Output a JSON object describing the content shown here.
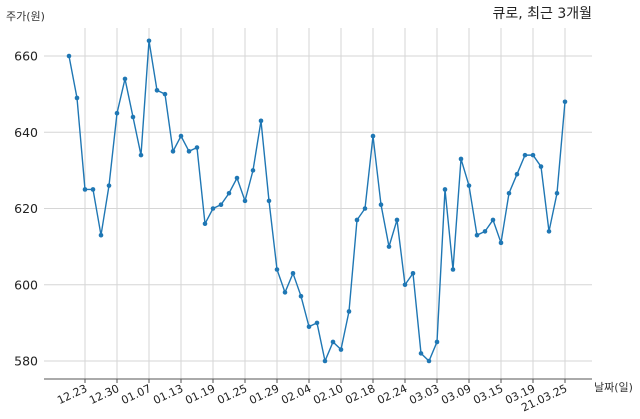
{
  "chart_data": {
    "type": "line",
    "title": "큐로, 최근 3개월",
    "ylabel": "주가(원)",
    "xlabel": "날짜(일)",
    "ylim": [
      575,
      668
    ],
    "yticks": [
      580,
      600,
      620,
      640,
      660
    ],
    "grid": true,
    "x_tick_labels": [
      "12.23",
      "12.30",
      "01.07",
      "01.13",
      "01.19",
      "01.25",
      "01.29",
      "02.04",
      "02.10",
      "02.18",
      "02.24",
      "03.03",
      "03.09",
      "03.15",
      "03.19",
      "21.03.25"
    ],
    "x_tick_index": [
      2,
      6,
      10,
      14,
      18,
      22,
      26,
      30,
      34,
      38,
      42,
      46,
      50,
      54,
      58,
      62
    ],
    "color": "#1f77b4",
    "series": [
      {
        "values": [
          660,
          649,
          625,
          625,
          613,
          626,
          645,
          654,
          644,
          634,
          664,
          651,
          650,
          635,
          639,
          635,
          636,
          616,
          620,
          621,
          624,
          628,
          622,
          630,
          643,
          622,
          604,
          598,
          603,
          597,
          589,
          590,
          580,
          585,
          583,
          593,
          617,
          620,
          639,
          621,
          610,
          617,
          600,
          603,
          582,
          580,
          585,
          625,
          604,
          633,
          626,
          613,
          614,
          617,
          611,
          624,
          629,
          634,
          634,
          631,
          614,
          624,
          648
        ]
      }
    ]
  }
}
